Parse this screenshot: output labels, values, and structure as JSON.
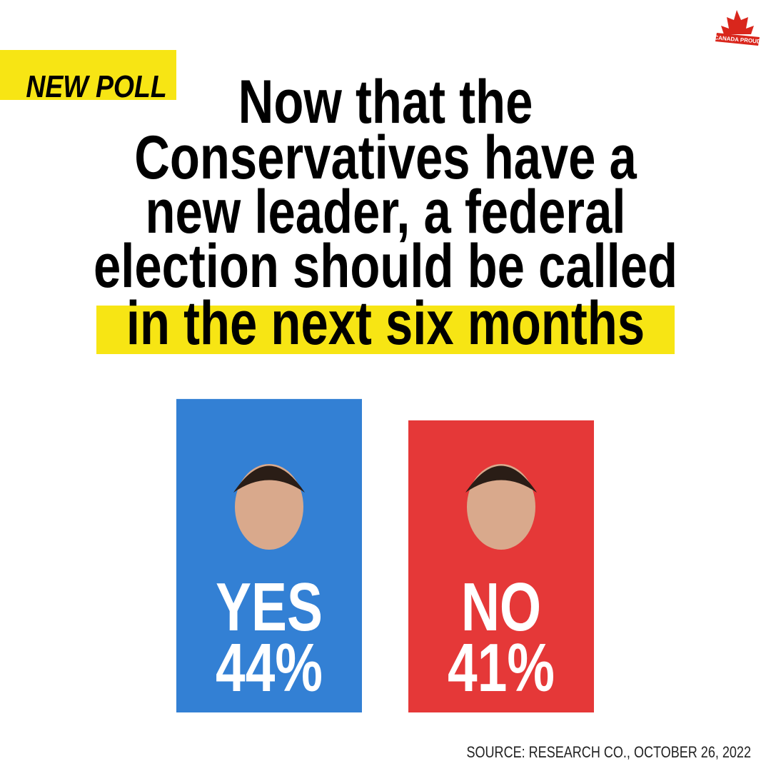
{
  "chart_data": {
    "type": "bar",
    "brand": "CANADA PROUD",
    "tag": "NEW POLL",
    "title_lines": [
      "Now that the",
      "Conservatives have a",
      "new leader, a federal",
      "election should be called"
    ],
    "title_highlight": "in the next six months",
    "categories": [
      "YES",
      "NO"
    ],
    "values": [
      44,
      41
    ],
    "value_labels": [
      "44%",
      "41%"
    ],
    "colors": [
      "#3380d4",
      "#e53838"
    ],
    "source": "SOURCE: RESEARCH CO., OCTOBER 26, 2022"
  }
}
